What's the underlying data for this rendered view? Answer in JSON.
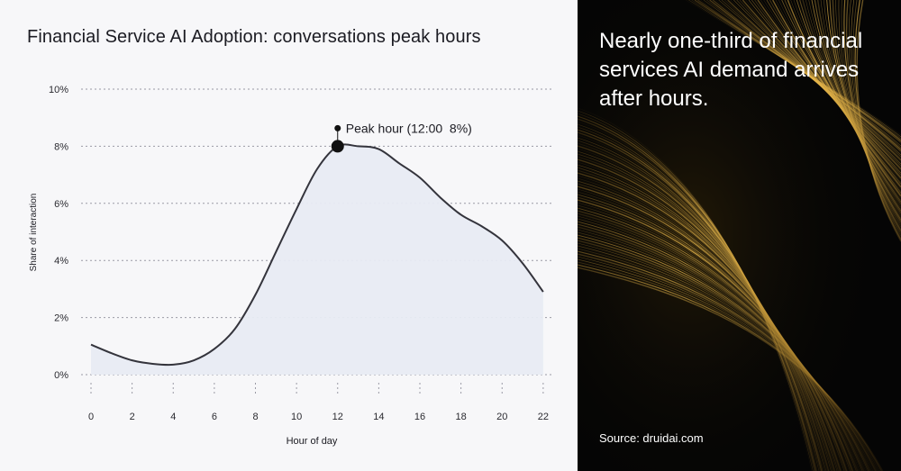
{
  "chart_data": {
    "type": "area",
    "title": "Financial Service AI Adoption: conversations peak hours",
    "xlabel": "Hour of day",
    "ylabel": "Share of interaction",
    "x": [
      0,
      1,
      2,
      3,
      4,
      5,
      6,
      7,
      8,
      9,
      10,
      11,
      12,
      13,
      14,
      15,
      16,
      17,
      18,
      19,
      20,
      21,
      22
    ],
    "values": [
      1.05,
      0.75,
      0.5,
      0.38,
      0.35,
      0.5,
      0.9,
      1.6,
      2.8,
      4.3,
      5.8,
      7.2,
      8.0,
      8.0,
      7.9,
      7.4,
      6.9,
      6.2,
      5.6,
      5.2,
      4.7,
      3.9,
      2.9
    ],
    "xticks": [
      "0",
      "2",
      "4",
      "6",
      "8",
      "10",
      "12",
      "14",
      "16",
      "18",
      "20",
      "22"
    ],
    "yticks": [
      "0%",
      "2%",
      "4%",
      "6%",
      "8%",
      "10%"
    ],
    "xlim": [
      0,
      22.4
    ],
    "ylim": [
      0,
      10
    ],
    "grid": true,
    "annotation": {
      "text": "Peak hour (12:00  8%)",
      "x": 12,
      "y": 8
    },
    "colors": {
      "line": "#34343c",
      "fill": "#e8ebf3",
      "grid": "#9a9aa5",
      "marker": "#111111"
    }
  },
  "side_panel": {
    "headline": "Nearly one-third of financial services AI demand arrives after hours.",
    "source": "Source: druidai.com",
    "colors": {
      "background": "#050505",
      "glow": "#d8a53a"
    }
  }
}
